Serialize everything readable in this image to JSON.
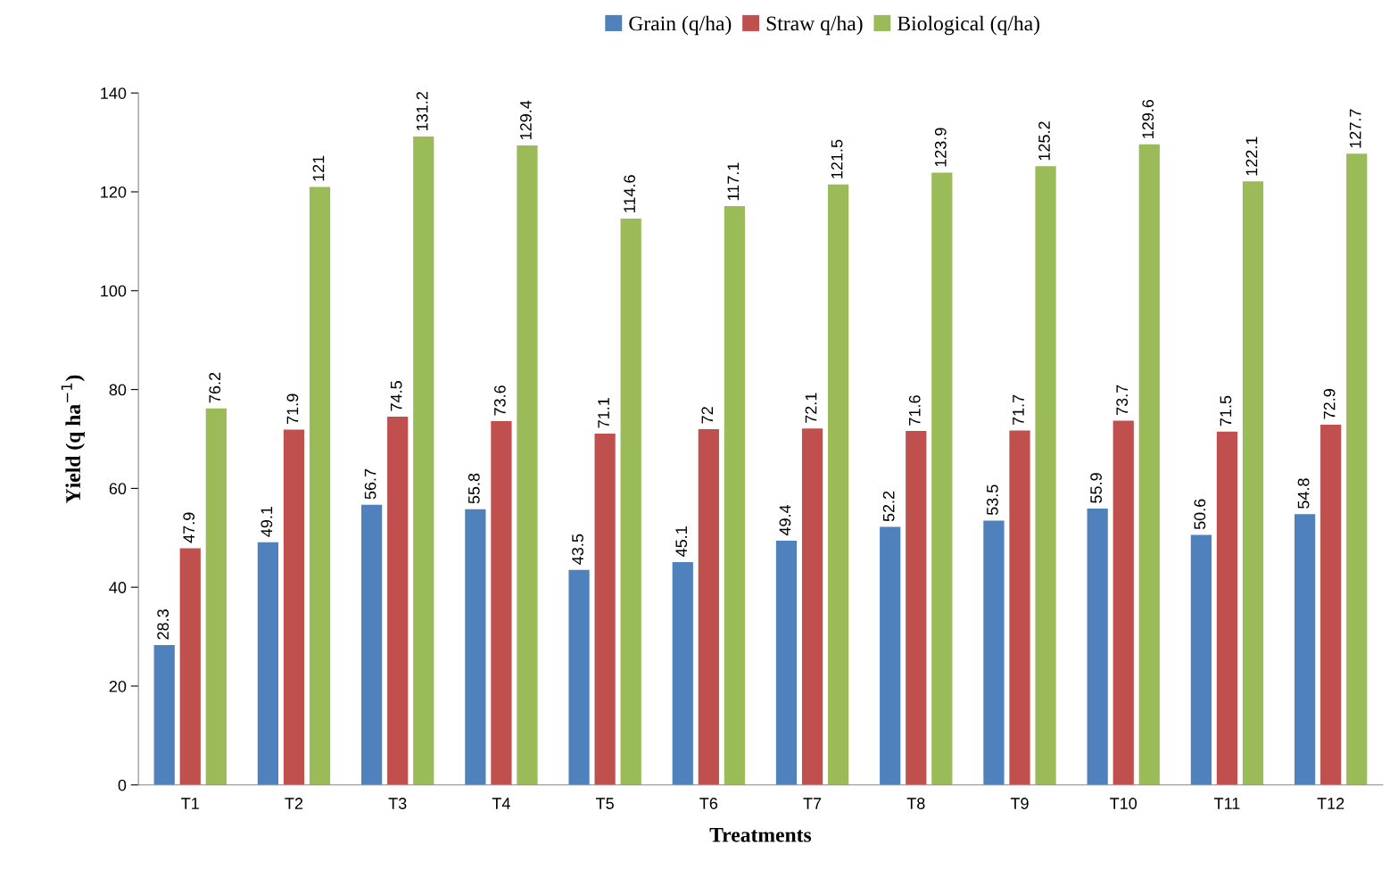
{
  "chart_data": {
    "type": "bar",
    "xlabel": "Treatments",
    "ylabel": "Yield (q ha$^{−1}$)",
    "categories": [
      "T1",
      "T2",
      "T3",
      "T4",
      "T5",
      "T6",
      "T7",
      "T8",
      "T9",
      "T10",
      "T11",
      "T12"
    ],
    "series": [
      {
        "name": "Grain (q/ha)",
        "color": "#4f81bd",
        "values": [
          28.3,
          49.1,
          56.7,
          55.8,
          43.5,
          45.1,
          49.4,
          52.2,
          53.5,
          55.9,
          50.6,
          54.8
        ]
      },
      {
        "name": "Straw q/ha)",
        "color": "#c0504d",
        "values": [
          47.9,
          71.9,
          74.5,
          73.6,
          71.1,
          72,
          72.1,
          71.6,
          71.7,
          73.7,
          71.5,
          72.9
        ]
      },
      {
        "name": "Biological (q/ha)",
        "color": "#9bbb59",
        "values": [
          76.2,
          121,
          131.2,
          129.4,
          114.6,
          117.1,
          121.5,
          123.9,
          125.2,
          129.6,
          122.1,
          127.7
        ]
      }
    ],
    "ylim": [
      0,
      140
    ],
    "yticks": [
      0,
      20,
      40,
      60,
      80,
      100,
      120,
      140
    ],
    "grid": false,
    "legend": "top",
    "data_labels": true
  }
}
